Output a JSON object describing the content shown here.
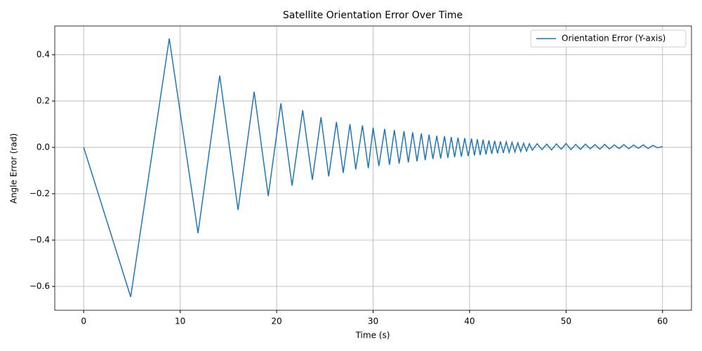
{
  "chart_data": {
    "type": "line",
    "title": "Satellite Orientation Error Over Time",
    "x_label": "Time (s)",
    "y_label": "Angle Error (rad)",
    "x": [
      0,
      4.87,
      8.87,
      11.85,
      14.1,
      16.0,
      17.67,
      19.13,
      20.44,
      21.6,
      22.7,
      23.7,
      24.6,
      25.4,
      26.2,
      26.9,
      27.6,
      28.2,
      28.9,
      29.5,
      30.0,
      30.6,
      31.2,
      31.7,
      32.2,
      32.7,
      33.2,
      33.65,
      34.1,
      34.55,
      35.0,
      35.4,
      35.8,
      36.2,
      36.6,
      37.0,
      37.4,
      37.75,
      38.1,
      38.45,
      38.8,
      39.15,
      39.5,
      39.85,
      40.2,
      40.5,
      40.8,
      41.1,
      41.4,
      41.7,
      42.0,
      42.3,
      42.6,
      42.9,
      43.2,
      43.5,
      43.8,
      44.1,
      44.4,
      44.7,
      45.0,
      45.3,
      45.6,
      45.9,
      46.2,
      46.5,
      47,
      47.5,
      48,
      48.5,
      49,
      49.5,
      50,
      50.5,
      51,
      51.5,
      52,
      52.5,
      53,
      53.5,
      54,
      54.5,
      55,
      55.5,
      56,
      56.5,
      57,
      57.5,
      58,
      58.5,
      59,
      59.5,
      60
    ],
    "series": [
      {
        "name": "Orientation Error (Y-axis)",
        "color": "#1f77b4",
        "values": [
          0,
          -0.645,
          0.47,
          -0.37,
          0.31,
          -0.27,
          0.24,
          -0.21,
          0.19,
          -0.165,
          0.16,
          -0.14,
          0.13,
          -0.125,
          0.11,
          -0.11,
          0.1,
          -0.095,
          0.095,
          -0.09,
          0.085,
          -0.08,
          0.08,
          -0.075,
          0.075,
          -0.07,
          0.07,
          -0.065,
          0.065,
          -0.06,
          0.06,
          -0.055,
          0.055,
          -0.05,
          0.05,
          -0.048,
          0.048,
          -0.045,
          0.045,
          -0.042,
          0.042,
          -0.04,
          0.04,
          -0.038,
          0.038,
          -0.035,
          0.035,
          -0.033,
          0.033,
          -0.03,
          0.03,
          -0.028,
          0.028,
          -0.026,
          0.026,
          -0.024,
          0.024,
          -0.022,
          0.022,
          -0.02,
          0.02,
          -0.018,
          0.018,
          -0.016,
          0.016,
          -0.012,
          0.016,
          -0.01,
          0.014,
          -0.011,
          0.015,
          -0.008,
          0.017,
          -0.01,
          0.013,
          -0.009,
          0.014,
          -0.006,
          0.012,
          -0.008,
          0.013,
          -0.007,
          0.011,
          -0.005,
          0.012,
          -0.006,
          0.01,
          -0.004,
          0.011,
          -0.005,
          0.009,
          -0.002,
          0.004
        ]
      }
    ],
    "xlim": [
      -3,
      63
    ],
    "ylim": [
      -0.703,
      0.524
    ],
    "xticks": [
      0,
      10,
      20,
      30,
      40,
      50,
      60
    ],
    "yticks": [
      {
        "value": -0.6,
        "label": "−0.6"
      },
      {
        "value": -0.4,
        "label": "−0.4"
      },
      {
        "value": -0.2,
        "label": "−0.2"
      },
      {
        "value": 0,
        "label": "0.0"
      },
      0.2,
      0.4
    ],
    "grid": true,
    "legend": "upper right"
  }
}
